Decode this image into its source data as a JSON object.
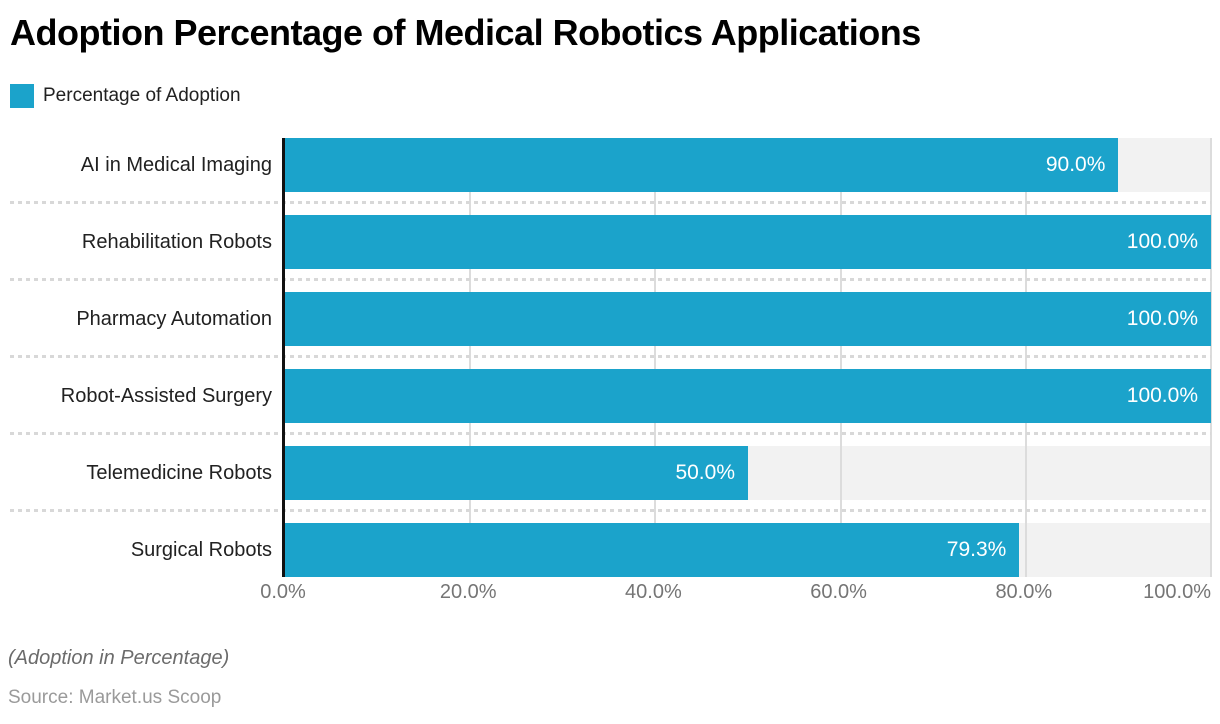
{
  "header": {
    "title": "Adoption Percentage of Medical Robotics Applications"
  },
  "legend": {
    "label": "Percentage of Adoption"
  },
  "colors": {
    "bar": "#1ba3cb",
    "track": "#f2f2f2",
    "grid": "#dcdcdc",
    "axis": "#111111",
    "value_text": "#ffffff"
  },
  "chart_data": {
    "type": "bar",
    "orientation": "horizontal",
    "title": "Adoption Percentage of Medical Robotics Applications",
    "series_name": "Percentage of Adoption",
    "categories": [
      "AI in Medical Imaging",
      "Rehabilitation Robots",
      "Pharmacy Automation",
      "Robot-Assisted Surgery",
      "Telemedicine Robots",
      "Surgical Robots"
    ],
    "values": [
      90.0,
      100.0,
      100.0,
      100.0,
      50.0,
      79.3
    ],
    "value_labels": [
      "90.0%",
      "100.0%",
      "100.0%",
      "100.0%",
      "50.0%",
      "79.3%"
    ],
    "xlabel": "",
    "ylabel": "",
    "xlim": [
      0,
      100
    ],
    "x_ticks": [
      "0.0%",
      "20.0%",
      "40.0%",
      "60.0%",
      "80.0%",
      "100.0%"
    ],
    "x_tick_values": [
      0,
      20,
      40,
      60,
      80,
      100
    ],
    "grid": "vertical-only",
    "legend_position": "top-left"
  },
  "footer": {
    "note": "(Adoption in Percentage)",
    "source": "Source: Market.us Scoop"
  }
}
